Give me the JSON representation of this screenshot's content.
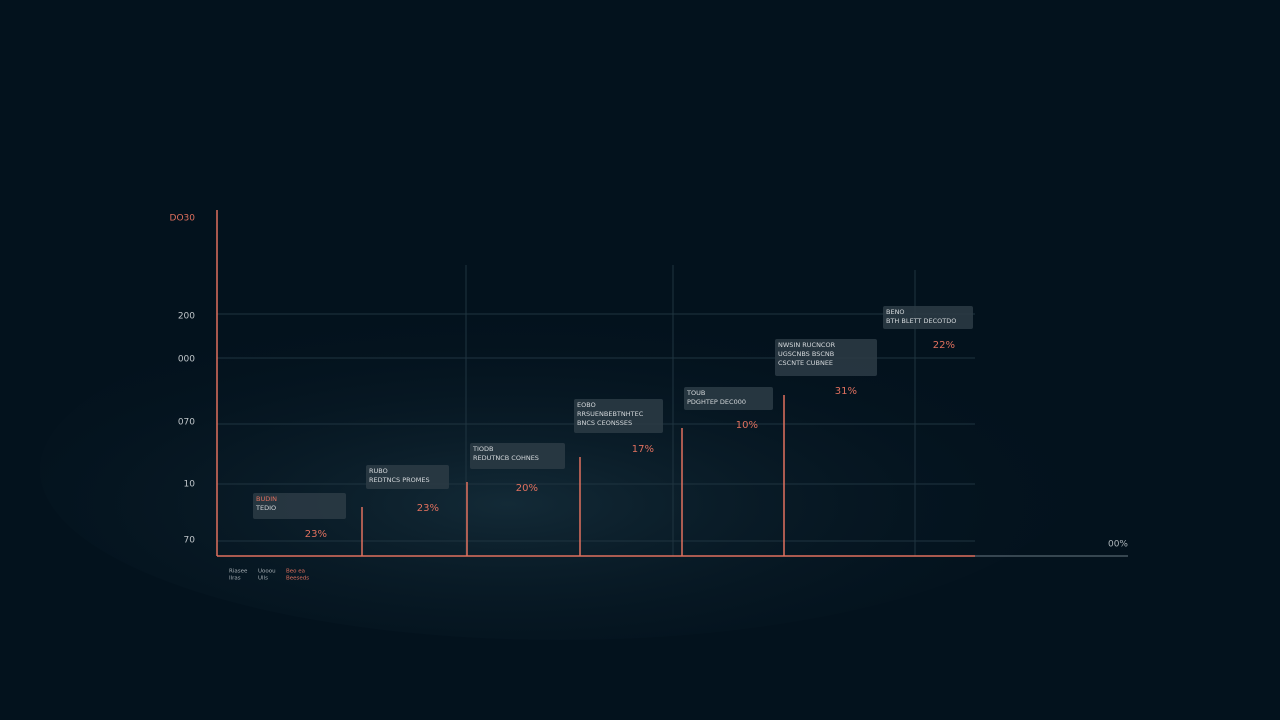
{
  "y_axis_labels": [
    "DO30",
    "200",
    "000",
    "070",
    "10",
    "70"
  ],
  "x_axis_end_label": "00%",
  "callouts": [
    {
      "lines": [
        "BUDIN",
        "TEDIO"
      ],
      "percent": "23%"
    },
    {
      "lines": [
        "RUBO",
        "REDTNCS PROMES"
      ],
      "percent": "23%"
    },
    {
      "lines": [
        "TIODB",
        "REDUTNCB COHNES"
      ],
      "percent": "20%"
    },
    {
      "lines": [
        "EOBO",
        "RRSUENBEBTNHTEC",
        "BNCS CEONSSES"
      ],
      "percent": "17%"
    },
    {
      "lines": [
        "TOUB",
        "PDGHTEP DEC000"
      ],
      "percent": "10%"
    },
    {
      "lines": [
        "NWSIN RUCNCOR",
        "UGSCNBS BSCNB",
        "CSCNTE CUBNEE"
      ],
      "percent": "31%"
    },
    {
      "lines": [
        "BENO",
        "BTH BLETT DECOTDO"
      ],
      "percent": "22%"
    }
  ],
  "legend": [
    {
      "lines": [
        "Riasee",
        "Ilras"
      ]
    },
    {
      "lines": [
        "Uooou",
        "Ulls"
      ]
    },
    {
      "lines": [
        "Beo ea",
        "Beeseds"
      ]
    }
  ]
}
